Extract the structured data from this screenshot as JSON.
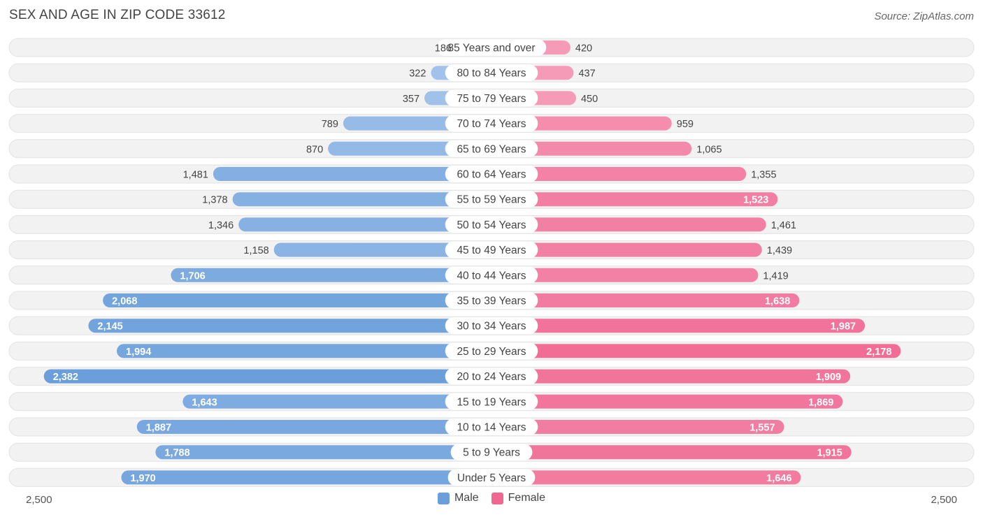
{
  "title": "SEX AND AGE IN ZIP CODE 33612",
  "source": "Source: ZipAtlas.com",
  "colors": {
    "male": "#6a9fdb",
    "female": "#f06792",
    "male_light": "#aac8ec",
    "female_light": "#f6a6c0",
    "track": "#f1f1f1"
  },
  "chart_data": {
    "type": "bar",
    "orientation": "horizontal-diverging",
    "title": "SEX AND AGE IN ZIP CODE 33612",
    "categories": [
      "85 Years and over",
      "80 to 84 Years",
      "75 to 79 Years",
      "70 to 74 Years",
      "65 to 69 Years",
      "60 to 64 Years",
      "55 to 59 Years",
      "50 to 54 Years",
      "45 to 49 Years",
      "40 to 44 Years",
      "35 to 39 Years",
      "30 to 34 Years",
      "25 to 29 Years",
      "20 to 24 Years",
      "15 to 19 Years",
      "10 to 14 Years",
      "5 to 9 Years",
      "Under 5 Years"
    ],
    "series": [
      {
        "name": "Male",
        "values": [
          186,
          322,
          357,
          789,
          870,
          1481,
          1378,
          1346,
          1158,
          1706,
          2068,
          2145,
          1994,
          2382,
          1643,
          1887,
          1788,
          1970
        ],
        "labels": [
          "186",
          "322",
          "357",
          "789",
          "870",
          "1,481",
          "1,378",
          "1,346",
          "1,158",
          "1,706",
          "2,068",
          "2,145",
          "1,994",
          "2,382",
          "1,643",
          "1,887",
          "1,788",
          "1,970"
        ]
      },
      {
        "name": "Female",
        "values": [
          420,
          437,
          450,
          959,
          1065,
          1355,
          1523,
          1461,
          1439,
          1419,
          1638,
          1987,
          2178,
          1909,
          1869,
          1557,
          1915,
          1646
        ],
        "labels": [
          "420",
          "437",
          "450",
          "959",
          "1,065",
          "1,355",
          "1,523",
          "1,461",
          "1,439",
          "1,419",
          "1,638",
          "1,987",
          "2,178",
          "1,909",
          "1,869",
          "1,557",
          "1,915",
          "1,646"
        ]
      }
    ],
    "xlim": [
      -2500,
      2500
    ],
    "axis_tick_labels": {
      "left": "2,500",
      "right": "2,500"
    },
    "legend": {
      "position": "bottom-center",
      "entries": [
        "Male",
        "Female"
      ]
    }
  }
}
